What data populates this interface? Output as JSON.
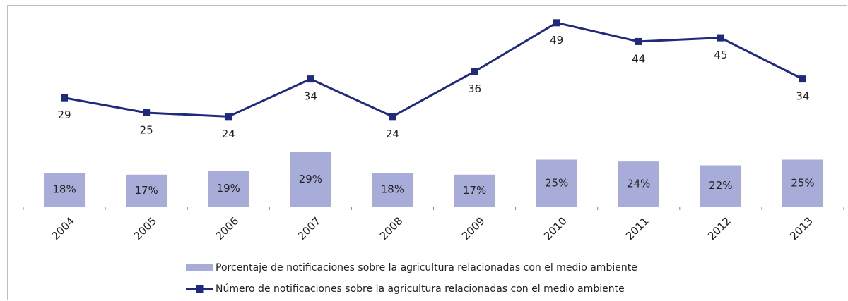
{
  "chart_data": {
    "type": "combo",
    "categories": [
      "2004",
      "2005",
      "2006",
      "2007",
      "2008",
      "2009",
      "2010",
      "2011",
      "2012",
      "2013"
    ],
    "series": [
      {
        "name": "Porcentaje de notificaciones sobre la agricultura relacionadas con el medio ambiente",
        "type": "bar",
        "axis": "y",
        "color": "#a7acd9",
        "values": [
          18,
          17,
          19,
          29,
          18,
          17,
          25,
          24,
          22,
          25
        ],
        "value_labels": [
          "18%",
          "17%",
          "19%",
          "29%",
          "18%",
          "17%",
          "25%",
          "24%",
          "22%",
          "25%"
        ]
      },
      {
        "name": "Número de notificaciones sobre la agricultura relacionadas con el medio ambiente",
        "type": "line",
        "axis": "y2",
        "color": "#1f2a7c",
        "values": [
          29,
          25,
          24,
          34,
          24,
          36,
          49,
          44,
          45,
          34
        ]
      }
    ],
    "ylim": [
      0,
      100
    ],
    "y2lim": [
      0,
      50
    ]
  }
}
